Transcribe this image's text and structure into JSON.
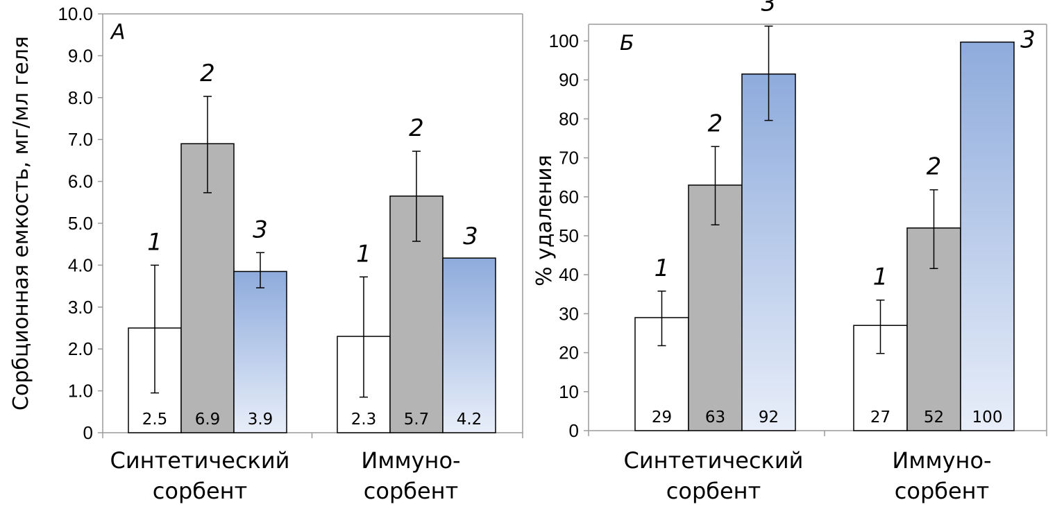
{
  "colors": {
    "series_1": "#ffffff",
    "series_2": "#b4b4b4",
    "series_3_top": "#8eabdc",
    "series_3_bottom": "#e8eef9"
  },
  "chart_data": [
    {
      "type": "bar",
      "panel_label": "А",
      "ylabel": "Сорбционная емкость, мг/мл геля",
      "ylim": [
        0,
        10
      ],
      "yticks": [
        "0",
        "1.0",
        "2.0",
        "3.0",
        "4.0",
        "5.0",
        "6.0",
        "7.0",
        "8.0",
        "9.0",
        "10.0"
      ],
      "categories": [
        [
          "Синтетический",
          "сорбент"
        ],
        [
          "Иммуно-",
          "сорбент"
        ]
      ],
      "series": [
        {
          "name": "1",
          "values": [
            2.5,
            2.3
          ],
          "labels": [
            "2.5",
            "2.3"
          ],
          "err": [
            [
              0.95,
              4.0
            ],
            [
              0.85,
              3.72
            ]
          ]
        },
        {
          "name": "2",
          "values": [
            6.9,
            5.65
          ],
          "labels": [
            "6.9",
            "5.7"
          ],
          "err": [
            [
              5.73,
              8.03
            ],
            [
              4.57,
              6.72
            ]
          ]
        },
        {
          "name": "3",
          "values": [
            3.85,
            4.17
          ],
          "labels": [
            "3.9",
            "4.2"
          ],
          "err": [
            [
              3.46,
              4.3
            ],
            null
          ]
        }
      ],
      "grid": false
    },
    {
      "type": "bar",
      "panel_label": "Б",
      "ylabel": "% удаления",
      "ylim": [
        0,
        105
      ],
      "yticks": [
        "0",
        "10",
        "20",
        "30",
        "40",
        "50",
        "60",
        "70",
        "80",
        "90",
        "100"
      ],
      "categories": [
        [
          "Синтетический",
          "сорбент"
        ],
        [
          "Иммуно-",
          "сорбент"
        ]
      ],
      "series": [
        {
          "name": "1",
          "values": [
            29,
            27
          ],
          "labels": [
            "29",
            "27"
          ],
          "err": [
            [
              21.8,
              35.8
            ],
            [
              19.8,
              33.5
            ]
          ]
        },
        {
          "name": "2",
          "values": [
            63,
            52
          ],
          "labels": [
            "63",
            "52"
          ],
          "err": [
            [
              52.8,
              72.9
            ],
            [
              41.6,
              61.8
            ]
          ]
        },
        {
          "name": "3",
          "values": [
            91.5,
            99.7
          ],
          "labels": [
            "92",
            "100"
          ],
          "err": [
            [
              79.6,
              103.8
            ],
            null
          ]
        }
      ],
      "grid": false
    }
  ]
}
